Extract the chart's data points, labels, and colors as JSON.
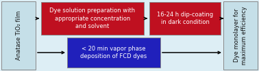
{
  "bg_color": "#ddeef5",
  "box_left_text": "Anatase TiO₂ film",
  "box_right_text": "Dye monolayer for\nmaximum efficiency",
  "box_red1_text": "Dye solution preparation with\nappropriate concentration\nand solvent",
  "box_red2_text": "16-24 h dip-coating\nin dark condition",
  "box_blue_text": "< 20 min vapor phase\ndeposition of FCD dyes",
  "box_left_color": "#c5dfe8",
  "box_right_color": "#c5dfe8",
  "box_red_color": "#bf1020",
  "box_blue_color": "#2020bb",
  "text_color_white": "#ffffff",
  "text_color_dark": "#111111",
  "edge_color": "#888888",
  "arrow_color": "#000000",
  "fontsize": 6.0,
  "lw": 0.7
}
